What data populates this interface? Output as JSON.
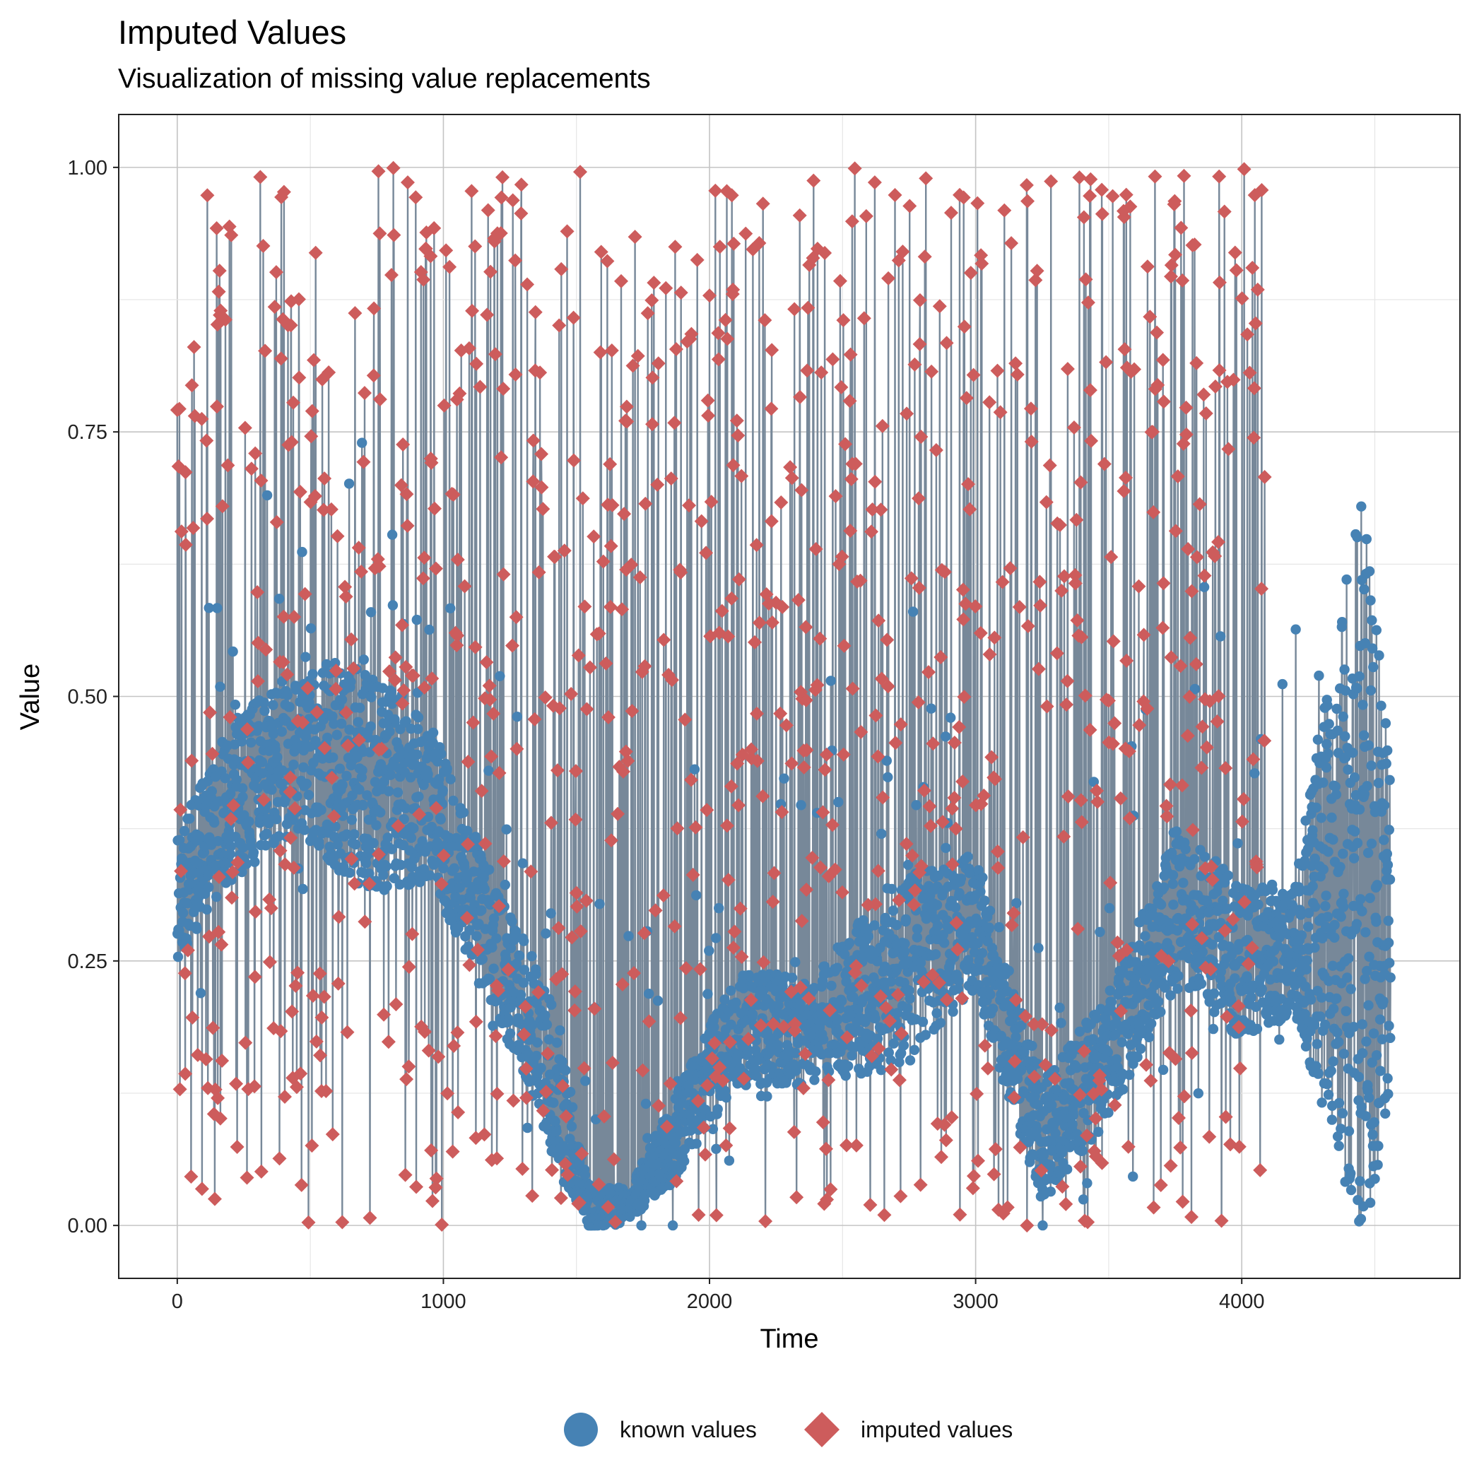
{
  "chart_data": {
    "type": "line",
    "title": "Imputed Values",
    "subtitle": "Visualization of missing value replacements",
    "xlabel": "Time",
    "ylabel": "Value",
    "xlim": [
      -220,
      4820
    ],
    "ylim": [
      -0.05,
      1.05
    ],
    "x_ticks": [
      0,
      1000,
      2000,
      3000,
      4000
    ],
    "x_tick_labels": [
      "0",
      "1000",
      "2000",
      "3000",
      "4000"
    ],
    "y_ticks": [
      0,
      0.25,
      0.5,
      0.75,
      1.0
    ],
    "y_tick_labels": [
      "0.00",
      "0.25",
      "0.50",
      "0.75",
      "1.00"
    ],
    "grid": true,
    "legend_position": "bottom",
    "n_points": 4560,
    "imputed_range": [
      0,
      4090
    ],
    "series": [
      {
        "name": "known values",
        "marker": "circle",
        "color": "#4682B4"
      },
      {
        "name": "imputed values",
        "marker": "diamond",
        "color": "#CD5C5C"
      }
    ],
    "line_color": "#778899",
    "envelope": [
      {
        "x": 0,
        "known_low": 0.27,
        "known_high": 0.35,
        "imputed_low": 0.0,
        "imputed_high": 1.0
      },
      {
        "x": 200,
        "known_low": 0.35,
        "known_high": 0.45,
        "imputed_low": 0.0,
        "imputed_high": 1.0
      },
      {
        "x": 450,
        "known_low": 0.4,
        "known_high": 0.5,
        "imputed_low": 0.0,
        "imputed_high": 1.0
      },
      {
        "x": 700,
        "known_low": 0.35,
        "known_high": 0.5,
        "imputed_low": 0.0,
        "imputed_high": 1.0
      },
      {
        "x": 950,
        "known_low": 0.35,
        "known_high": 0.45,
        "imputed_low": 0.0,
        "imputed_high": 1.0
      },
      {
        "x": 1200,
        "known_low": 0.22,
        "known_high": 0.3,
        "imputed_low": 0.0,
        "imputed_high": 1.0
      },
      {
        "x": 1400,
        "known_low": 0.1,
        "known_high": 0.2,
        "imputed_low": 0.0,
        "imputed_high": 1.0
      },
      {
        "x": 1550,
        "known_low": 0.0,
        "known_high": 0.03,
        "imputed_low": 0.0,
        "imputed_high": 1.0
      },
      {
        "x": 1700,
        "known_low": 0.01,
        "known_high": 0.03,
        "imputed_low": 0.0,
        "imputed_high": 1.0
      },
      {
        "x": 1850,
        "known_low": 0.05,
        "known_high": 0.1,
        "imputed_low": 0.0,
        "imputed_high": 1.0
      },
      {
        "x": 2100,
        "known_low": 0.15,
        "known_high": 0.22,
        "imputed_low": 0.0,
        "imputed_high": 1.0
      },
      {
        "x": 2400,
        "known_low": 0.15,
        "known_high": 0.22,
        "imputed_low": 0.0,
        "imputed_high": 1.0
      },
      {
        "x": 2700,
        "known_low": 0.18,
        "known_high": 0.3,
        "imputed_low": 0.0,
        "imputed_high": 1.0
      },
      {
        "x": 3000,
        "known_low": 0.24,
        "known_high": 0.33,
        "imputed_low": 0.0,
        "imputed_high": 1.0
      },
      {
        "x": 3250,
        "known_low": 0.04,
        "known_high": 0.12,
        "imputed_low": 0.0,
        "imputed_high": 1.0
      },
      {
        "x": 3500,
        "known_low": 0.12,
        "known_high": 0.2,
        "imputed_low": 0.0,
        "imputed_high": 1.0
      },
      {
        "x": 3750,
        "known_low": 0.25,
        "known_high": 0.35,
        "imputed_low": 0.0,
        "imputed_high": 1.0
      },
      {
        "x": 4000,
        "known_low": 0.2,
        "known_high": 0.3,
        "imputed_low": 0.0,
        "imputed_high": 1.0
      },
      {
        "x": 4200,
        "known_low": 0.22,
        "known_high": 0.3,
        "imputed_low": null,
        "imputed_high": null
      },
      {
        "x": 4450,
        "known_low": 0.1,
        "known_high": 0.6,
        "imputed_low": null,
        "imputed_high": null
      },
      {
        "x": 4560,
        "known_low": 0.16,
        "known_high": 0.37,
        "imputed_low": null,
        "imputed_high": null
      }
    ]
  }
}
